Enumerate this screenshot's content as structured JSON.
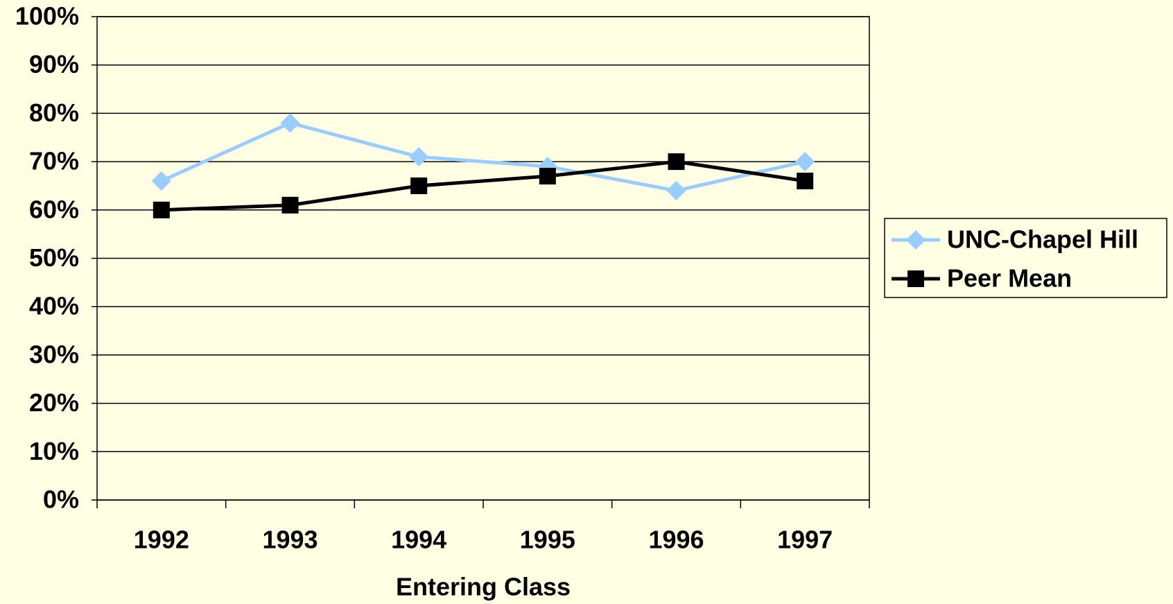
{
  "chart_data": {
    "type": "line",
    "x_label": "Entering Class",
    "categories": [
      "1992",
      "1993",
      "1994",
      "1995",
      "1996",
      "1997"
    ],
    "series": [
      {
        "name": "UNC-Chapel Hill",
        "color": "#99ccff",
        "marker": "diamond",
        "values": [
          66,
          78,
          71,
          69,
          64,
          70
        ]
      },
      {
        "name": "Peer Mean",
        "color": "#000000",
        "marker": "square",
        "values": [
          60,
          61,
          65,
          67,
          70,
          66
        ]
      }
    ],
    "ylim": [
      0,
      100
    ],
    "yticks": [
      {
        "value": 0,
        "label": "0%"
      },
      {
        "value": 10,
        "label": "10%"
      },
      {
        "value": 20,
        "label": "20%"
      },
      {
        "value": 30,
        "label": "30%"
      },
      {
        "value": 40,
        "label": "40%"
      },
      {
        "value": 50,
        "label": "50%"
      },
      {
        "value": 60,
        "label": "60%"
      },
      {
        "value": 70,
        "label": "70%"
      },
      {
        "value": 80,
        "label": "80%"
      },
      {
        "value": 90,
        "label": "90%"
      },
      {
        "value": 100,
        "label": "100%"
      }
    ],
    "grid": true,
    "legend": "right"
  }
}
